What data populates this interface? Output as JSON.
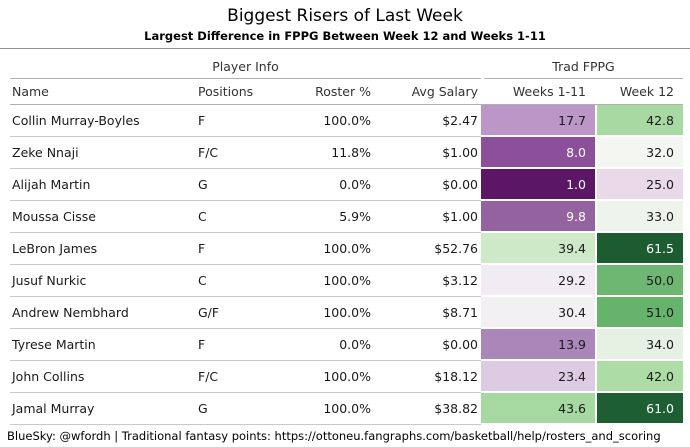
{
  "chart_data": {
    "type": "table",
    "title": "Biggest Risers of Last Week",
    "subtitle": "Largest Difference in FPPG Between Week 12 and Weeks 1-11",
    "footer": "BlueSky: @wfordh | Traditional fantasy points: https://ottoneu.fangraphs.com/basketball/help/rosters_and_scoring",
    "column_groups": [
      {
        "label": "Player Info",
        "span": 4
      },
      {
        "label": "Trad FPPG",
        "span": 2
      }
    ],
    "columns": [
      "Name",
      "Positions",
      "Roster %",
      "Avg Salary",
      "Weeks 1-11",
      "Week 12"
    ],
    "heatmap_colormap": "purple-white-green",
    "rows": [
      {
        "name": "Collin Murray-Boyles",
        "positions": "F",
        "roster_pct": "100.0%",
        "avg_salary": "$2.47",
        "weeks_1_11": "17.7",
        "week_12": "42.8",
        "w111_bg": "#bb96c7",
        "w111_fg": "#1a1a1a",
        "w12_bg": "#a9d9a3",
        "w12_fg": "#1a1a1a"
      },
      {
        "name": "Zeke Nnaji",
        "positions": "F/C",
        "roster_pct": "11.8%",
        "avg_salary": "$1.00",
        "weeks_1_11": "8.0",
        "week_12": "32.0",
        "w111_bg": "#8b5099",
        "w111_fg": "#ffffff",
        "w12_bg": "#f4f6f2",
        "w12_fg": "#1a1a1a"
      },
      {
        "name": "Alijah Martin",
        "positions": "G",
        "roster_pct": "0.0%",
        "avg_salary": "$0.00",
        "weeks_1_11": "1.0",
        "week_12": "25.0",
        "w111_bg": "#5b1766",
        "w111_fg": "#ffffff",
        "w12_bg": "#e9d9e9",
        "w12_fg": "#1a1a1a"
      },
      {
        "name": "Moussa Cisse",
        "positions": "C",
        "roster_pct": "5.9%",
        "avg_salary": "$1.00",
        "weeks_1_11": "9.8",
        "week_12": "33.0",
        "w111_bg": "#94639f",
        "w111_fg": "#ffffff",
        "w12_bg": "#eef4ec",
        "w12_fg": "#1a1a1a"
      },
      {
        "name": "LeBron James",
        "positions": "F",
        "roster_pct": "100.0%",
        "avg_salary": "$52.76",
        "weeks_1_11": "39.4",
        "week_12": "61.5",
        "w111_bg": "#cde9c8",
        "w111_fg": "#1a1a1a",
        "w12_bg": "#1d5c31",
        "w12_fg": "#ffffff"
      },
      {
        "name": "Jusuf Nurkic",
        "positions": "C",
        "roster_pct": "100.0%",
        "avg_salary": "$3.12",
        "weeks_1_11": "29.2",
        "week_12": "50.0",
        "w111_bg": "#f1ecf3",
        "w111_fg": "#1a1a1a",
        "w12_bg": "#6db772",
        "w12_fg": "#1a1a1a"
      },
      {
        "name": "Andrew Nembhard",
        "positions": "G/F",
        "roster_pct": "100.0%",
        "avg_salary": "$8.71",
        "weeks_1_11": "30.4",
        "week_12": "51.0",
        "w111_bg": "#f2f0f3",
        "w111_fg": "#1a1a1a",
        "w12_bg": "#66b36c",
        "w12_fg": "#1a1a1a"
      },
      {
        "name": "Tyrese Martin",
        "positions": "F",
        "roster_pct": "0.0%",
        "avg_salary": "$0.00",
        "weeks_1_11": "13.9",
        "week_12": "34.0",
        "w111_bg": "#aa86b9",
        "w111_fg": "#1a1a1a",
        "w12_bg": "#e7f1e3",
        "w12_fg": "#1a1a1a"
      },
      {
        "name": "John Collins",
        "positions": "F/C",
        "roster_pct": "100.0%",
        "avg_salary": "$18.12",
        "weeks_1_11": "23.4",
        "week_12": "42.0",
        "w111_bg": "#ddcbe4",
        "w111_fg": "#1a1a1a",
        "w12_bg": "#addca7",
        "w12_fg": "#1a1a1a"
      },
      {
        "name": "Jamal Murray",
        "positions": "G",
        "roster_pct": "100.0%",
        "avg_salary": "$38.82",
        "weeks_1_11": "43.6",
        "week_12": "61.0",
        "w111_bg": "#a6d8a1",
        "w111_fg": "#1a1a1a",
        "w12_bg": "#1e5e33",
        "w12_fg": "#ffffff"
      }
    ]
  }
}
